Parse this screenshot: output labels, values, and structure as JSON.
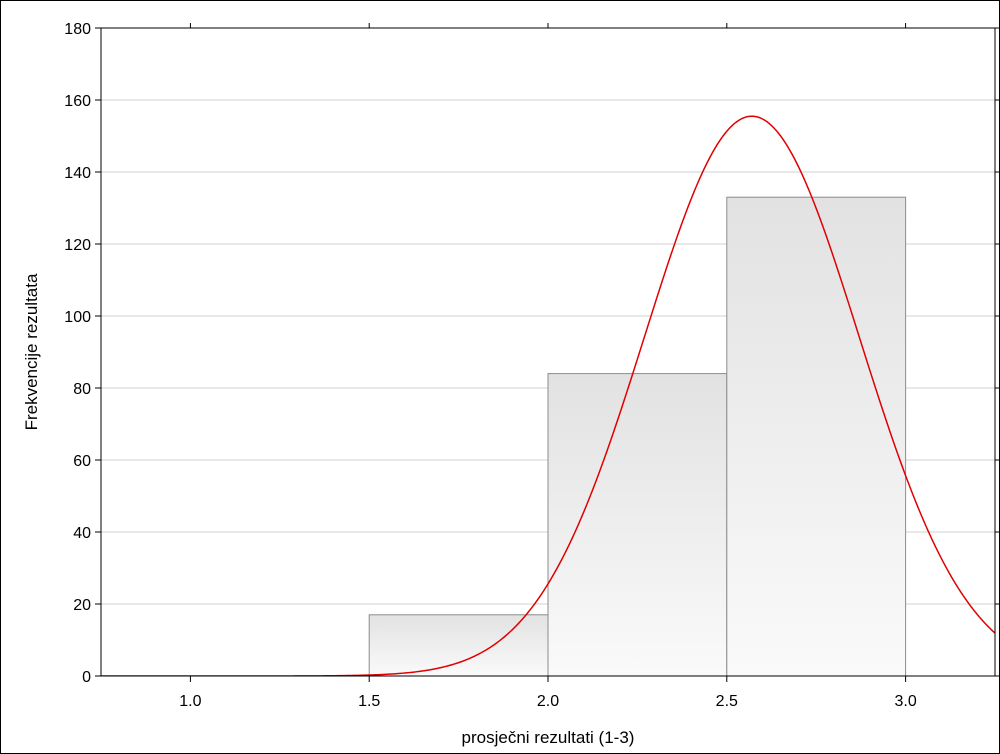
{
  "chart_data": {
    "type": "bar",
    "title": "",
    "xlabel": "prosječni rezultati (1-3)",
    "ylabel": "Frekvencije rezultata",
    "xlim": [
      0.75,
      3.25
    ],
    "ylim": [
      0,
      180
    ],
    "x_ticks": [
      1.0,
      1.5,
      2.0,
      2.5,
      3.0
    ],
    "x_tick_labels": [
      "1.0",
      "1.5",
      "2.0",
      "2.5",
      "3.0"
    ],
    "y_ticks": [
      0,
      20,
      40,
      60,
      80,
      100,
      120,
      140,
      160,
      180
    ],
    "y_tick_labels": [
      "0",
      "20",
      "40",
      "60",
      "80",
      "100",
      "120",
      "140",
      "160",
      "180"
    ],
    "grid": "horizontal",
    "bins": [
      {
        "start": 1.5,
        "end": 2.0,
        "value": 17
      },
      {
        "start": 2.0,
        "end": 2.5,
        "value": 84
      },
      {
        "start": 2.5,
        "end": 3.0,
        "value": 133
      }
    ],
    "normal_curve": {
      "mean": 2.57,
      "sd": 0.3,
      "peak": 155.5
    },
    "colors": {
      "bar_fill_top": "#e2e2e2",
      "bar_fill_bottom": "#fafafa",
      "bar_stroke": "#8c8c8c",
      "curve": "#e00000",
      "grid": "#d0d0d0",
      "axis": "#000000"
    }
  }
}
